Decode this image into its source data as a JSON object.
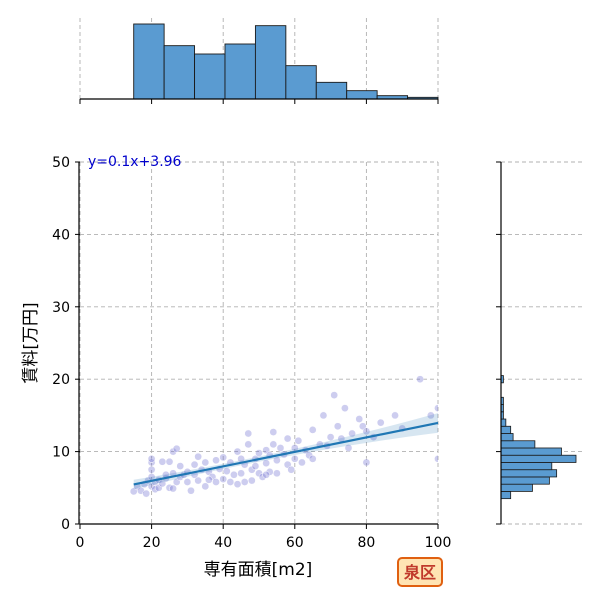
{
  "chart_data": {
    "type": "scatter",
    "xlabel": "専有面積[m2]",
    "ylabel": "賃料[万円]",
    "xlim": [
      0,
      100
    ],
    "ylim": [
      0,
      50
    ],
    "x_ticks": [
      0,
      20,
      40,
      60,
      80,
      100
    ],
    "y_ticks": [
      0,
      10,
      20,
      30,
      40,
      50
    ],
    "grid": true,
    "point_color": "#7b7bd6",
    "line_color": "#1f77b4",
    "hist_color": "#5a9bd1",
    "regression": {
      "label": "y=0.1x+3.96",
      "slope": 0.1,
      "intercept": 3.96,
      "x_range": [
        15,
        100
      ],
      "label_color": "#0000cc"
    },
    "badge": {
      "text": "泉区",
      "text_color": "#c0392b",
      "fill": "#ffe4b3",
      "border": "#e06010"
    },
    "x_histogram": {
      "bin_edges": [
        15,
        23.5,
        32,
        40.5,
        49,
        57.5,
        66,
        74.5,
        83,
        91.5,
        100
      ],
      "counts": [
        45,
        32,
        27,
        33,
        44,
        20,
        10,
        5,
        2,
        1
      ]
    },
    "y_histogram": {
      "bin_edges": [
        3.5,
        4.5,
        5.5,
        6.5,
        7.5,
        8.5,
        9.5,
        10.5,
        11.5,
        12.5,
        13.5,
        14.5,
        15.5,
        16.5,
        17.5,
        18.5,
        19.5,
        20.5
      ],
      "counts": [
        4,
        13,
        20,
        23,
        21,
        31,
        25,
        14,
        5,
        4,
        2,
        1,
        1,
        1,
        0,
        0,
        1
      ]
    },
    "points": [
      [
        15,
        4.5
      ],
      [
        16,
        5.2
      ],
      [
        17,
        4.6
      ],
      [
        18,
        5.5
      ],
      [
        18.5,
        4.2
      ],
      [
        19,
        6.0
      ],
      [
        20,
        7.5
      ],
      [
        20,
        8.5
      ],
      [
        20,
        9.0
      ],
      [
        20,
        6.5
      ],
      [
        20,
        5.2
      ],
      [
        21,
        5.8
      ],
      [
        21,
        4.8
      ],
      [
        22,
        6.1
      ],
      [
        22,
        5.0
      ],
      [
        23,
        8.6
      ],
      [
        23,
        5.6
      ],
      [
        24,
        6.3
      ],
      [
        25,
        8.6
      ],
      [
        25,
        5.0
      ],
      [
        26,
        7.0
      ],
      [
        26,
        10.0
      ],
      [
        27,
        10.4
      ],
      [
        27,
        5.8
      ],
      [
        28,
        6.5
      ],
      [
        28,
        8.0
      ],
      [
        29,
        6.8
      ],
      [
        30,
        7.2
      ],
      [
        30,
        5.8
      ],
      [
        31,
        4.6
      ],
      [
        32,
        6.8
      ],
      [
        32,
        8.2
      ],
      [
        33,
        6.0
      ],
      [
        34,
        7.5
      ],
      [
        35,
        5.2
      ],
      [
        35,
        8.5
      ],
      [
        36,
        7.2
      ],
      [
        37,
        6.5
      ],
      [
        38,
        5.8
      ],
      [
        38,
        8.8
      ],
      [
        39,
        7.6
      ],
      [
        40,
        6.2
      ],
      [
        40,
        9.2
      ],
      [
        41,
        7.3
      ],
      [
        42,
        5.8
      ],
      [
        42,
        8.5
      ],
      [
        43,
        6.8
      ],
      [
        44,
        10.0
      ],
      [
        45,
        9.0
      ],
      [
        45,
        7.0
      ],
      [
        46,
        5.8
      ],
      [
        46,
        8.2
      ],
      [
        47,
        11.0
      ],
      [
        47,
        12.5
      ],
      [
        48,
        7.5
      ],
      [
        48,
        6.0
      ],
      [
        49,
        9.0
      ],
      [
        49,
        8.0
      ],
      [
        50,
        7.0
      ],
      [
        50,
        9.8
      ],
      [
        51,
        6.5
      ],
      [
        52,
        10.2
      ],
      [
        52,
        8.4
      ],
      [
        53,
        7.2
      ],
      [
        53,
        9.5
      ],
      [
        54,
        12.7
      ],
      [
        54,
        11.0
      ],
      [
        55,
        8.8
      ],
      [
        55,
        7.0
      ],
      [
        56,
        10.5
      ],
      [
        57,
        9.6
      ],
      [
        58,
        8.2
      ],
      [
        58,
        11.8
      ],
      [
        59,
        7.5
      ],
      [
        60,
        10.5
      ],
      [
        60,
        9.0
      ],
      [
        61,
        11.5
      ],
      [
        62,
        8.5
      ],
      [
        63,
        10.2
      ],
      [
        64,
        9.5
      ],
      [
        65,
        9.0
      ],
      [
        65,
        13.0
      ],
      [
        67,
        11.0
      ],
      [
        68,
        15.0
      ],
      [
        69,
        10.8
      ],
      [
        70,
        12.0
      ],
      [
        71,
        17.8
      ],
      [
        72,
        13.5
      ],
      [
        73,
        11.8
      ],
      [
        74,
        16.0
      ],
      [
        75,
        10.5
      ],
      [
        76,
        12.5
      ],
      [
        78,
        14.5
      ],
      [
        79,
        13.5
      ],
      [
        80,
        8.5
      ],
      [
        80,
        12.8
      ],
      [
        82,
        12.0
      ],
      [
        84,
        14.0
      ],
      [
        88,
        15.0
      ],
      [
        90,
        13.2
      ],
      [
        95,
        20.0
      ],
      [
        98,
        15.0
      ],
      [
        100,
        16.0
      ],
      [
        100,
        9.0
      ],
      [
        24,
        6.8
      ],
      [
        26,
        4.9
      ],
      [
        33,
        9.3
      ],
      [
        36,
        6.1
      ],
      [
        44,
        5.5
      ],
      [
        52,
        6.8
      ]
    ]
  }
}
